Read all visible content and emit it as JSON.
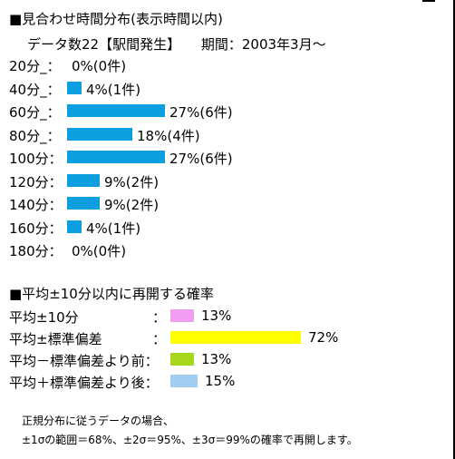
{
  "chart_data": [
    {
      "type": "bar",
      "title": "■見合わせ時間分布(表示時間以内)",
      "subtitle_left": "データ数22【駅間発生】",
      "subtitle_right": "期間：2003年3月～",
      "categories": [
        "20分_：",
        "40分_：",
        "60分_：",
        "80分_：",
        "100分：",
        "120分：",
        "140分：",
        "160分：",
        "180分："
      ],
      "values": [
        0,
        4,
        27,
        18,
        27,
        9,
        9,
        4,
        0
      ],
      "value_labels": [
        "0%(0件)",
        "4%(1件)",
        "27%(6件)",
        "18%(4件)",
        "27%(6件)",
        "9%(2件)",
        "9%(2件)",
        "4%(1件)",
        "0%(0件)"
      ],
      "unit": "%",
      "bar_color": "#0d9ee0"
    },
    {
      "type": "bar",
      "title": "■平均±10分以内に再開する確率",
      "categories": [
        "平均±10分",
        "平均±標準偏差",
        "平均－標準偏差より前：",
        "平均＋標準偏差より後："
      ],
      "values": [
        13,
        72,
        13,
        15
      ],
      "value_labels": [
        "13%",
        "72%",
        "13%",
        "15%"
      ],
      "colors": [
        "#f09cf0",
        "#ffff00",
        "#a6d61e",
        "#a0cdf0"
      ],
      "unit": "%"
    }
  ],
  "colons": [
    "：",
    "："
  ],
  "notes": {
    "line1": "正規分布に従うデータの場合、",
    "line2": "±1σの範囲＝68%、±2σ＝95%、±3σ＝99%の確率で再開します。"
  }
}
